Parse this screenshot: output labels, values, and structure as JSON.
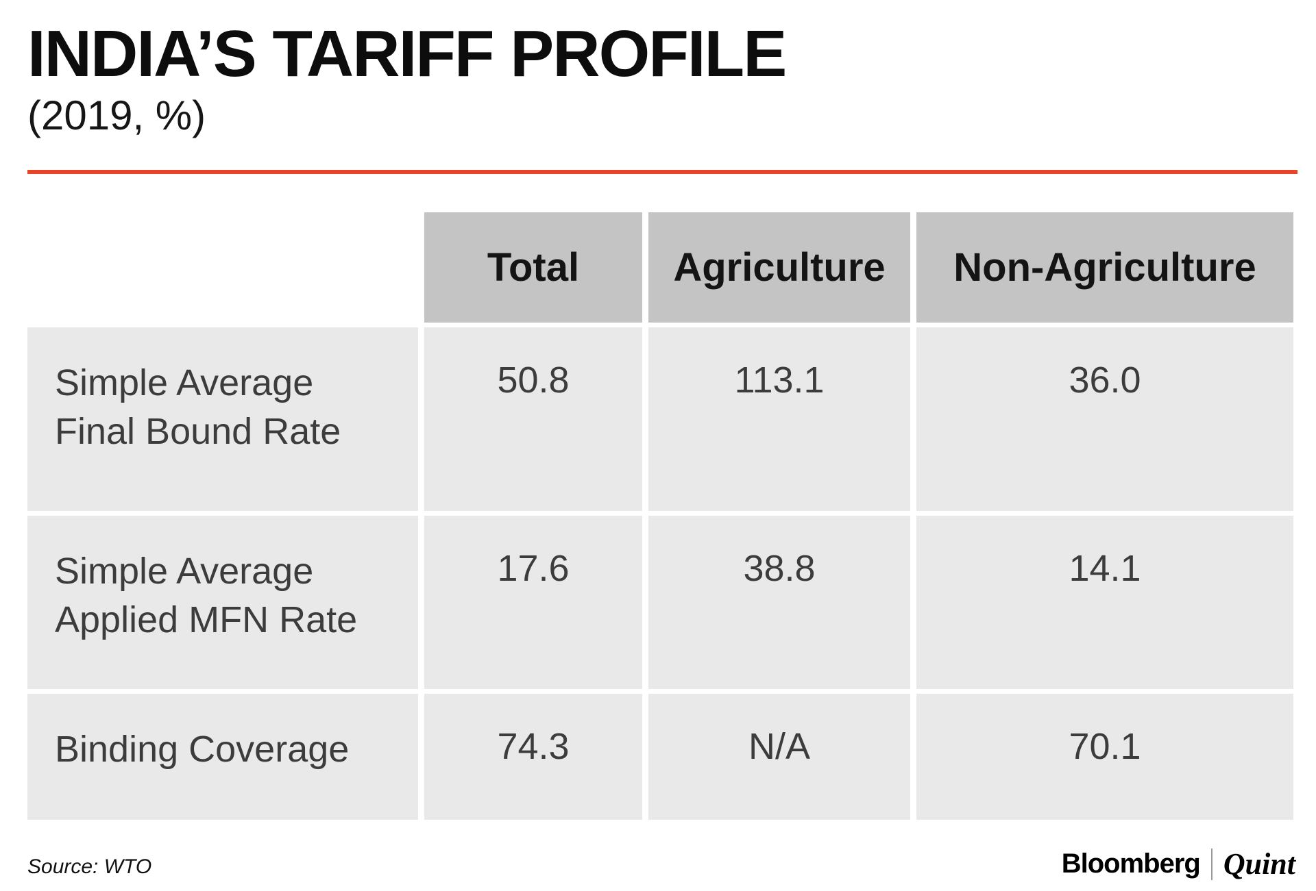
{
  "header": {
    "title": "INDIA’S TARIFF PROFILE",
    "subtitle": "(2019, %)"
  },
  "colors": {
    "accent": "#e8442a",
    "header_cell_bg": "#c4c4c4",
    "body_cell_bg": "#e9e9e9"
  },
  "chart_data": {
    "type": "table",
    "title": "INDIA’S TARIFF PROFILE",
    "subtitle": "(2019, %)",
    "columns": [
      "",
      "Total",
      "Agriculture",
      "Non-Agriculture"
    ],
    "rows": [
      {
        "label": "Simple Average Final Bound Rate",
        "label_lines": [
          "Simple Average",
          "Final Bound Rate"
        ],
        "values": [
          "50.8",
          "113.1",
          "36.0"
        ]
      },
      {
        "label": "Simple Average Applied MFN Rate",
        "label_lines": [
          "Simple Average",
          "Applied MFN Rate"
        ],
        "values": [
          "17.6",
          "38.8",
          "14.1"
        ]
      },
      {
        "label": "Binding Coverage",
        "label_lines": [
          "Binding Coverage"
        ],
        "values": [
          "74.3",
          "N/A",
          "70.1"
        ]
      }
    ],
    "source": "WTO"
  },
  "footer": {
    "source": "Source: WTO",
    "brand": {
      "bloomberg": "Bloomberg",
      "quint": "Quint"
    }
  }
}
